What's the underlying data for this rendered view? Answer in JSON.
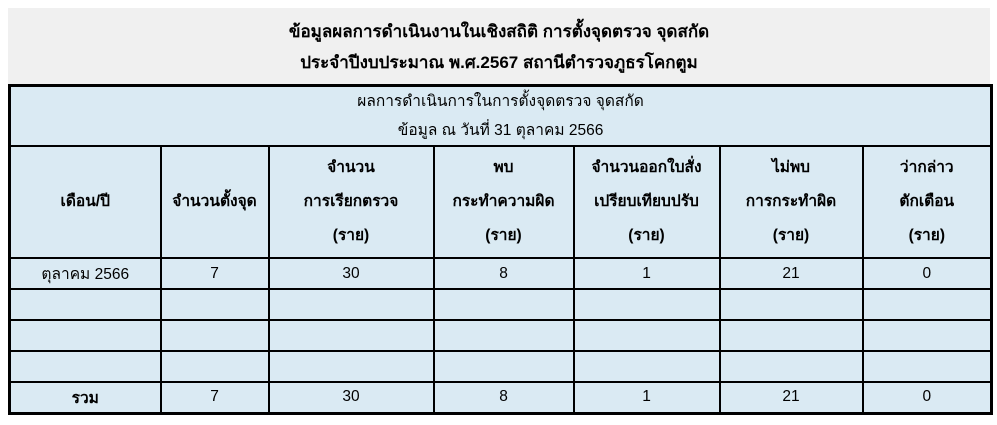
{
  "title": {
    "line1": "ข้อมูลผลการดำเนินงานในเชิงสถิติ การตั้งจุดตรวจ จุดสกัด",
    "line2": "ประจำปีงบประมาณ พ.ศ.2567 สถานีตำรวจภูธรโคกตูม"
  },
  "table": {
    "subtitle": {
      "line1": "ผลการดำเนินการในการตั้งจุดตรวจ จุดสกัด",
      "line2": "ข้อมูล ณ วันที่ 31 ตุลาคม 2566"
    },
    "headers": [
      {
        "lines": [
          "เดือน/ปี"
        ]
      },
      {
        "lines": [
          "จำนวนตั้งจุด"
        ]
      },
      {
        "lines": [
          "จำนวน",
          "การเรียกตรวจ",
          "(ราย)"
        ]
      },
      {
        "lines": [
          "พบ",
          "กระทำความผิด",
          "(ราย)"
        ]
      },
      {
        "lines": [
          "จำนวนออกใบสั่ง",
          "เปรียบเทียบปรับ",
          "(ราย)"
        ]
      },
      {
        "lines": [
          "ไม่พบ",
          "การกระทำผิด",
          "(ราย)"
        ]
      },
      {
        "lines": [
          "ว่ากล่าว",
          "ตักเตือน",
          "(ราย)"
        ]
      }
    ],
    "rows": [
      [
        "ตุลาคม 2566",
        "7",
        "30",
        "8",
        "1",
        "21",
        "0"
      ],
      [
        "",
        "",
        "",
        "",
        "",
        "",
        ""
      ],
      [
        "",
        "",
        "",
        "",
        "",
        "",
        ""
      ],
      [
        "",
        "",
        "",
        "",
        "",
        "",
        ""
      ]
    ],
    "total": [
      "รวม",
      "7",
      "30",
      "8",
      "1",
      "21",
      "0"
    ]
  },
  "colors": {
    "title_band_bg": "#f0f0f0",
    "table_cell_bg": "#daeaf3",
    "border": "#000000",
    "page_bg": "#ffffff"
  }
}
